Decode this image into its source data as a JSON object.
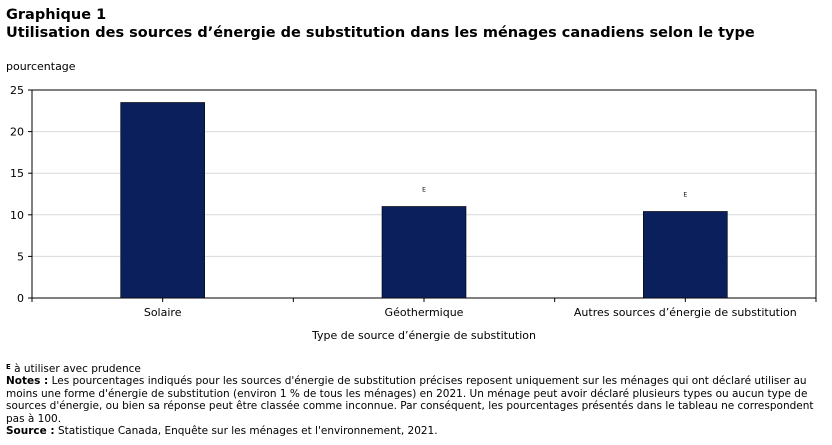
{
  "header": {
    "label": "Graphique 1",
    "title": "Utilisation des sources d’énergie de substitution dans les ménages canadiens selon le type"
  },
  "chart_data": {
    "type": "bar",
    "units_label": "pourcentage",
    "xlabel": "Type de source d’énergie de substitution",
    "categories": [
      "Solaire",
      "Géothermique",
      "Autres sources d’énergie de substitution"
    ],
    "values": [
      23.5,
      11,
      10.4
    ],
    "flags": [
      "",
      "E",
      "E"
    ],
    "ylim": [
      0,
      25
    ],
    "yticks": [
      0,
      5,
      10,
      15,
      20,
      25
    ],
    "grid": true,
    "bar_color": "#0a1f5c",
    "grid_color": "#d9d9d9"
  },
  "footnotes": {
    "flag_symbol": "E",
    "flag_text": " à utiliser avec prudence",
    "notes_label": "Notes :",
    "notes_text": " Les pourcentages indiqués pour les sources d'énergie de substitution précises reposent uniquement sur les ménages qui ont déclaré utiliser au moins une forme d'énergie de substitution (environ 1 % de tous les ménages) en 2021. Un ménage peut avoir déclaré plusieurs types ou aucun type de sources d'énergie, ou bien sa réponse peut être classée comme inconnue. Par conséquent, les pourcentages présentés dans le tableau ne correspondent pas à 100.",
    "source_label": "Source :",
    "source_text": " Statistique Canada, Enquête sur les ménages et l'environnement, 2021."
  }
}
